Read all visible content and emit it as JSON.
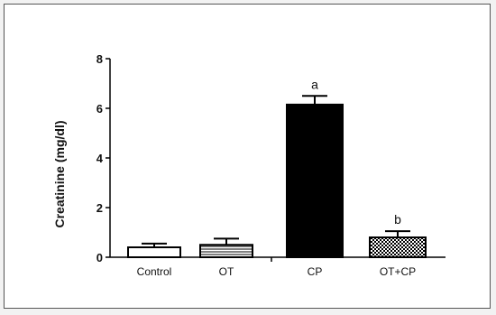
{
  "chart_data": {
    "type": "bar",
    "title": "",
    "xlabel": "",
    "ylabel": "Creatinine (mg/dl)",
    "ylim": [
      0,
      8
    ],
    "yticks": [
      0,
      2,
      4,
      6,
      8
    ],
    "grid": false,
    "categories": [
      "Control",
      "OT",
      "CP",
      "OT+CP"
    ],
    "values": [
      0.4,
      0.5,
      6.15,
      0.8
    ],
    "errors": [
      0.15,
      0.25,
      0.35,
      0.25
    ],
    "annotations": [
      "",
      "",
      "a",
      "b"
    ],
    "bar_styles": [
      "white",
      "striped",
      "solid",
      "checkered"
    ],
    "colors": {
      "outline": "#000000",
      "solid": "#000000",
      "fill_light": "#ffffff"
    }
  }
}
